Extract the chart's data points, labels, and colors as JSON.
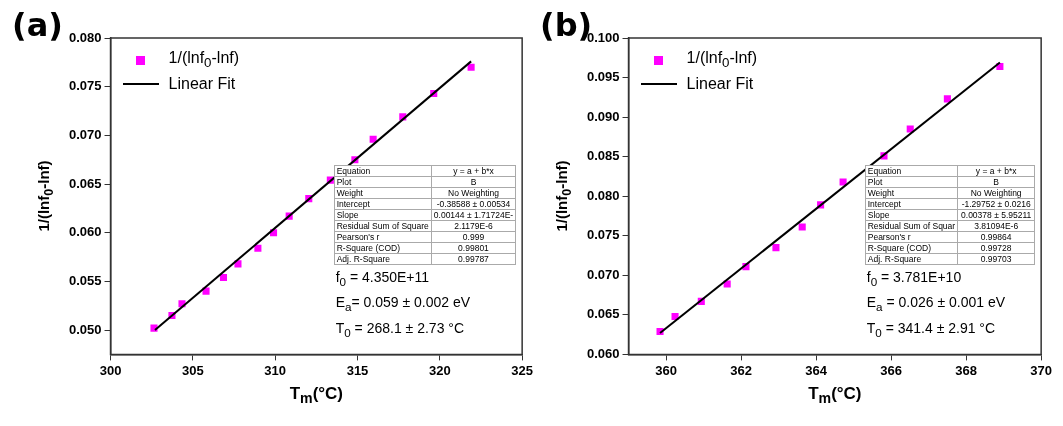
{
  "chart_data": [
    {
      "type": "scatter",
      "title": "(a)",
      "xlabel": "T$_{m}$(°C)",
      "ylabel": "1/(lnf$_{0}$-lnf)",
      "xlim": [
        300,
        325
      ],
      "xticks": [
        300,
        305,
        310,
        315,
        320,
        325
      ],
      "ylim": [
        0.0475,
        0.08
      ],
      "yticks": [
        {
          "value": 0.05,
          "label": "0.050"
        },
        0.055,
        {
          "value": 0.06,
          "label": "0.060"
        },
        0.065,
        {
          "value": 0.07,
          "label": "0.070"
        },
        0.075,
        {
          "value": 0.08,
          "label": "0.080"
        }
      ],
      "legend": "top left",
      "series": [
        {
          "name": "1/(lnf$_{0}$-lnf)",
          "type": "scatter",
          "marker": "square",
          "color": "#ff00ff",
          "x": [
            302.64,
            303.73,
            304.34,
            305.8,
            306.86,
            307.74,
            308.95,
            309.9,
            310.85,
            312.04,
            313.35,
            314.84,
            315.95,
            317.75,
            319.63,
            321.9
          ],
          "values": [
            0.0502,
            0.0515,
            0.0527,
            0.054,
            0.0554,
            0.0568,
            0.0584,
            0.06,
            0.0617,
            0.0635,
            0.0654,
            0.0675,
            0.0696,
            0.0719,
            0.0743,
            0.077
          ]
        },
        {
          "name": "Linear Fit",
          "type": "line",
          "marker": "none",
          "line_style": "solid",
          "color": "#000000",
          "x": [
            302.7,
            321.9
          ],
          "values": [
            0.05,
            0.0776
          ]
        }
      ],
      "annotations": [
        "Equation",
        "y = a + b*x",
        "Plot",
        "B",
        "Weight",
        "No Weighting",
        "Intercept",
        "-0.38588 ± 0.00534",
        "Slope",
        "0.00144 ± 1.71724E-",
        "Residual Sum of Square",
        "2.1179E-6",
        "Pearson's r",
        "0.999",
        "R-Square (COD)",
        "0.99801",
        "Adj. R-Square",
        "0.99787",
        "f$_{0}$ = 4.350E+11",
        "E$_{a}$= 0.059 ± 0.002 eV",
        "T$_{0}$ = 268.1 ± 2.73 °C"
      ]
    },
    {
      "type": "scatter",
      "title": "(b)",
      "xlabel": "T$_{m}$(°C)",
      "ylabel": "1/(lnf$_{0}$-lnf)",
      "xlim": [
        359,
        370
      ],
      "xticks": [
        360,
        362,
        364,
        366,
        368,
        370
      ],
      "ylim": [
        0.06,
        0.1
      ],
      "yticks": [
        {
          "value": 0.06,
          "label": "0.060"
        },
        0.065,
        {
          "value": 0.07,
          "label": "0.070"
        },
        0.075,
        {
          "value": 0.08,
          "label": "0.080"
        },
        0.085,
        {
          "value": 0.09,
          "label": "0.090"
        },
        0.095,
        {
          "value": 0.1,
          "label": "0.100"
        }
      ],
      "legend": "top left",
      "series": [
        {
          "name": "1/(lnf$_{0}$-lnf)",
          "type": "scatter",
          "marker": "square",
          "color": "#ff00ff",
          "x": [
            359.84,
            360.24,
            360.94,
            361.63,
            362.13,
            362.93,
            363.63,
            364.12,
            364.72,
            365.81,
            366.51,
            367.5,
            368.9
          ],
          "values": [
            0.0629,
            0.0648,
            0.0667,
            0.0689,
            0.0711,
            0.0735,
            0.0761,
            0.0789,
            0.0818,
            0.0851,
            0.0885,
            0.0923,
            0.0964
          ]
        },
        {
          "name": "Linear Fit",
          "type": "line",
          "marker": "none",
          "line_style": "solid",
          "color": "#000000",
          "x": [
            359.84,
            368.9
          ],
          "values": [
            0.0627,
            0.0969
          ]
        }
      ],
      "annotations": [
        "Equation",
        "y = a + b*x",
        "Plot",
        "B",
        "Weight",
        "No Weighting",
        "Intercept",
        "-1.29752 ± 0.0216",
        "Slope",
        "0.00378 ± 5.95211",
        "Residual Sum of Squar",
        "3.81094E-6",
        "Pearson's r",
        "0.99864",
        "R-Square (COD)",
        "0.99728",
        "Adj. R-Square",
        "0.99703",
        "f$_{0}$ = 3.781E+10",
        "E$_{a}$ = 0.026 ± 0.001 eV",
        "T$_{0}$ = 341.4 ± 2.91 °C"
      ]
    }
  ]
}
